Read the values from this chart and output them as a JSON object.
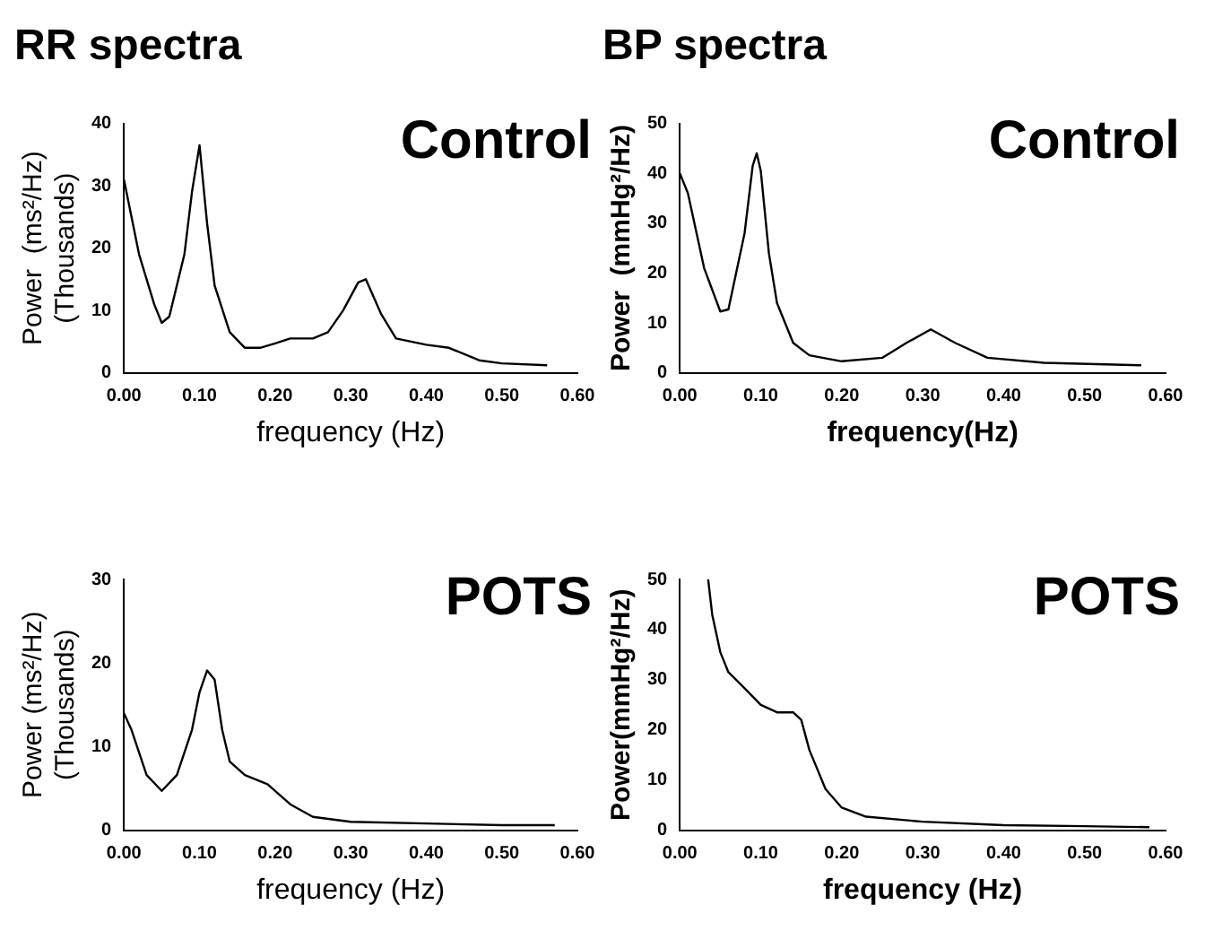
{
  "chart_data": [
    {
      "type": "line",
      "title": "RR spectra",
      "annotations": [
        "Control"
      ],
      "xlabel": "frequency (Hz)",
      "ylabel": "Power  (ms²/Hz)\n(Thousands)",
      "legend": false,
      "grid": false,
      "marker": "none",
      "line_style": "solid",
      "xlim": [
        0,
        0.6
      ],
      "xticks": [
        {
          "value": 0,
          "label": "0.00"
        },
        {
          "value": 0.1,
          "label": "0.10"
        },
        {
          "value": 0.2,
          "label": "0.20"
        },
        {
          "value": 0.3,
          "label": "0.30"
        },
        {
          "value": 0.4,
          "label": "0.40"
        },
        {
          "value": 0.5,
          "label": "0.50"
        },
        {
          "value": 0.6,
          "label": "0.60"
        }
      ],
      "ylim": [
        0,
        40
      ],
      "yticks": [
        0,
        10,
        20,
        30,
        40
      ],
      "series": [
        {
          "color": "#000000",
          "x": [
            0,
            0.02,
            0.04,
            0.05,
            0.06,
            0.08,
            0.09,
            0.1,
            0.11,
            0.12,
            0.14,
            0.16,
            0.18,
            0.2,
            0.22,
            0.25,
            0.27,
            0.29,
            0.31,
            0.32,
            0.34,
            0.36,
            0.4,
            0.43,
            0.47,
            0.5,
            0.56
          ],
          "values": [
            31,
            19,
            11,
            8,
            9,
            19,
            29,
            36.5,
            24,
            14,
            6.5,
            4,
            4,
            4.7,
            5.5,
            5.5,
            6.5,
            10,
            14.5,
            15,
            9.5,
            5.5,
            4.5,
            4,
            2,
            1.5,
            1.2
          ]
        }
      ]
    },
    {
      "type": "line",
      "title": "BP spectra",
      "annotations": [
        "Control"
      ],
      "xlabel": "frequency(Hz)",
      "ylabel": "Power  (mmHg²/Hz)",
      "legend": false,
      "grid": false,
      "marker": "none",
      "line_style": "solid",
      "xlim": [
        0,
        0.6
      ],
      "xticks": [
        {
          "value": 0,
          "label": "0.00"
        },
        {
          "value": 0.1,
          "label": "0.10"
        },
        {
          "value": 0.2,
          "label": "0.20"
        },
        {
          "value": 0.3,
          "label": "0.30"
        },
        {
          "value": 0.4,
          "label": "0.40"
        },
        {
          "value": 0.5,
          "label": "0.50"
        },
        {
          "value": 0.6,
          "label": "0.60"
        }
      ],
      "ylim": [
        0,
        50
      ],
      "yticks": [
        0,
        10,
        20,
        30,
        40,
        50
      ],
      "series": [
        {
          "color": "#000000",
          "x": [
            0,
            0.01,
            0.03,
            0.05,
            0.06,
            0.08,
            0.09,
            0.095,
            0.1,
            0.11,
            0.12,
            0.14,
            0.16,
            0.2,
            0.25,
            0.28,
            0.31,
            0.34,
            0.38,
            0.45,
            0.57
          ],
          "values": [
            40,
            36,
            21,
            12.3,
            12.7,
            28,
            41.5,
            44,
            40.5,
            24,
            14,
            6,
            3.5,
            2.3,
            3,
            6,
            8.7,
            6,
            3,
            2,
            1.5
          ]
        }
      ]
    },
    {
      "type": "line",
      "annotations": [
        "POTS"
      ],
      "xlabel": "frequency (Hz)",
      "ylabel": "Power (ms²/Hz)\n(Thousands)",
      "legend": false,
      "grid": false,
      "marker": "none",
      "line_style": "solid",
      "xlim": [
        0,
        0.6
      ],
      "xticks": [
        {
          "value": 0,
          "label": "0.00"
        },
        {
          "value": 0.1,
          "label": "0.10"
        },
        {
          "value": 0.2,
          "label": "0.20"
        },
        {
          "value": 0.3,
          "label": "0.30"
        },
        {
          "value": 0.4,
          "label": "0.40"
        },
        {
          "value": 0.5,
          "label": "0.50"
        },
        {
          "value": 0.6,
          "label": "0.60"
        }
      ],
      "ylim": [
        0,
        30
      ],
      "yticks": [
        0,
        10,
        20,
        30
      ],
      "series": [
        {
          "color": "#000000",
          "x": [
            0,
            0.01,
            0.03,
            0.05,
            0.07,
            0.09,
            0.1,
            0.11,
            0.12,
            0.13,
            0.14,
            0.16,
            0.19,
            0.22,
            0.25,
            0.3,
            0.4,
            0.5,
            0.57
          ],
          "values": [
            14,
            12,
            6.6,
            4.7,
            6.6,
            12,
            16.5,
            19.1,
            18,
            12,
            8.2,
            6.6,
            5.5,
            3.1,
            1.6,
            1,
            0.8,
            0.6,
            0.6
          ]
        }
      ]
    },
    {
      "type": "line",
      "annotations": [
        "POTS"
      ],
      "xlabel": "frequency (Hz)",
      "ylabel": "Power(mmHg²/Hz)",
      "legend": false,
      "grid": false,
      "marker": "none",
      "line_style": "solid",
      "xlim": [
        0,
        0.6
      ],
      "xticks": [
        {
          "value": 0,
          "label": "0.00"
        },
        {
          "value": 0.1,
          "label": "0.10"
        },
        {
          "value": 0.2,
          "label": "0.20"
        },
        {
          "value": 0.3,
          "label": "0.30"
        },
        {
          "value": 0.4,
          "label": "0.40"
        },
        {
          "value": 0.5,
          "label": "0.50"
        },
        {
          "value": 0.6,
          "label": "0.60"
        }
      ],
      "ylim": [
        0,
        50
      ],
      "yticks": [
        0,
        10,
        20,
        30,
        40,
        50
      ],
      "series": [
        {
          "color": "#000000",
          "x": [
            0.035,
            0.04,
            0.05,
            0.06,
            0.08,
            0.1,
            0.12,
            0.14,
            0.15,
            0.16,
            0.18,
            0.2,
            0.23,
            0.3,
            0.4,
            0.5,
            0.58
          ],
          "values": [
            50,
            43,
            35.5,
            31.5,
            28.3,
            25,
            23.5,
            23.5,
            22,
            16,
            8.2,
            4.5,
            2.7,
            1.7,
            1,
            0.8,
            0.6
          ]
        }
      ]
    }
  ]
}
